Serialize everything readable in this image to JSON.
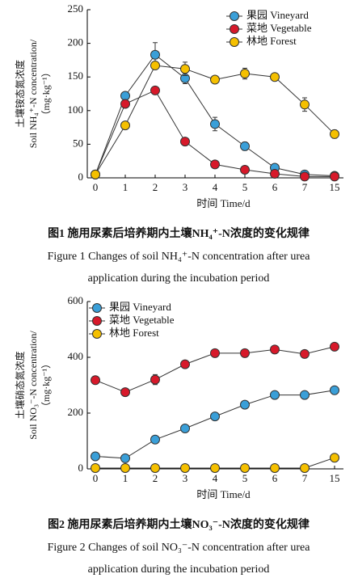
{
  "chart_data": [
    {
      "type": "line",
      "ylabel": [
        "土壤铵态氮浓度",
        "Soil NH₄⁺-N concentration/",
        "（mg·kg⁻¹）"
      ],
      "xlabel": "时间 Time/d",
      "categories": [
        "0",
        "1",
        "2",
        "3",
        "4",
        "5",
        "6",
        "7",
        "15"
      ],
      "ylim": [
        0,
        250
      ],
      "yticks": [
        0,
        50,
        100,
        150,
        200,
        250
      ],
      "legend": "upper right",
      "series": [
        {
          "name": "果园 Vineyard",
          "color": "#3a9fd8",
          "values": [
            5,
            122,
            183,
            148,
            80,
            47,
            15,
            5,
            3
          ],
          "errors": [
            2,
            4,
            18,
            8,
            10,
            6,
            3,
            2,
            1
          ]
        },
        {
          "name": "菜地 Vegetable",
          "color": "#d7192a",
          "values": [
            5,
            110,
            130,
            54,
            20,
            12,
            6,
            2,
            2
          ],
          "errors": [
            1,
            5,
            3,
            3,
            2,
            2,
            2,
            1,
            1
          ]
        },
        {
          "name": "林地 Forest",
          "color": "#f5c000",
          "values": [
            5,
            78,
            167,
            162,
            146,
            155,
            150,
            109,
            65
          ],
          "errors": [
            1,
            3,
            5,
            10,
            4,
            8,
            3,
            10,
            6
          ]
        }
      ],
      "caption": "图1  施用尿素后培养期内土壤NH₄⁺-N浓度的变化规律",
      "caption_en": [
        "Figure 1  Changes of soil NH₄⁺-N concentration after urea",
        "application during the incubation period"
      ]
    },
    {
      "type": "line",
      "ylabel": [
        "土壤硝态氮浓度",
        "Soil NO₃⁻-N concentration/",
        "（mg·kg⁻¹）"
      ],
      "xlabel": "时间 Time/d",
      "categories": [
        "0",
        "1",
        "2",
        "3",
        "4",
        "5",
        "6",
        "7",
        "15"
      ],
      "ylim": [
        0,
        600
      ],
      "yticks": [
        0,
        200,
        400,
        600
      ],
      "legend": "upper left",
      "series": [
        {
          "name": "果园 Vineyard",
          "color": "#3a9fd8",
          "values": [
            45,
            38,
            105,
            145,
            188,
            230,
            265,
            265,
            282
          ],
          "errors": [
            3,
            3,
            5,
            5,
            5,
            8,
            10,
            8,
            5
          ]
        },
        {
          "name": "菜地 Vegetable",
          "color": "#d7192a",
          "values": [
            318,
            275,
            320,
            375,
            415,
            415,
            428,
            412,
            438
          ],
          "errors": [
            5,
            12,
            18,
            8,
            5,
            5,
            5,
            5,
            5
          ]
        },
        {
          "name": "林地 Forest",
          "color": "#f5c000",
          "values": [
            3,
            3,
            3,
            3,
            3,
            3,
            3,
            3,
            40
          ],
          "errors": [
            1,
            1,
            1,
            1,
            1,
            1,
            1,
            1,
            3
          ]
        }
      ],
      "caption": "图2  施用尿素后培养期内土壤NO₃⁻-N浓度的变化规律",
      "caption_en": [
        "Figure 2  Changes of soil NO₃⁻-N concentration after urea",
        "application during the incubation period"
      ]
    }
  ]
}
